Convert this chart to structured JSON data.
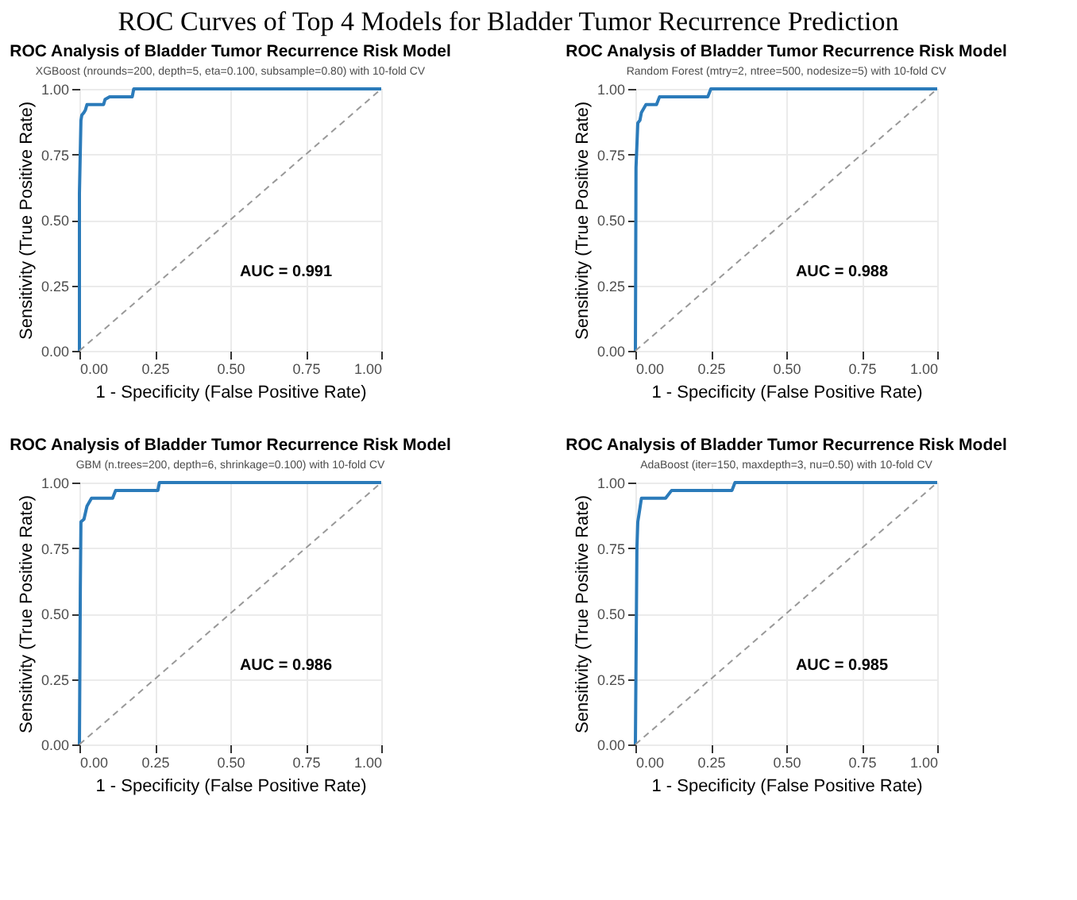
{
  "chart_data": [
    {
      "type": "line",
      "title": "ROC Analysis of Bladder Tumor Recurrence Risk Model",
      "subtitle": "XGBoost (nrounds=200, depth=5, eta=0.100, subsample=0.80) with 10-fold CV",
      "xlabel": "1 - Specificity (False Positive Rate)",
      "ylabel": "Sensitivity (True Positive Rate)",
      "annotations": [
        "ROC Curves of Top 4 Models for Bladder Tumor Recurrence Prediction",
        "AUC = 0.991"
      ],
      "xlim": [
        0,
        1
      ],
      "ylim": [
        0,
        1
      ],
      "xticks": [
        {
          "value": 0,
          "label": "0.00"
        },
        {
          "value": 0.25,
          "label": "0.25"
        },
        {
          "value": 0.5,
          "label": "0.50"
        },
        {
          "value": 0.75,
          "label": "0.75"
        },
        {
          "value": 1,
          "label": "1.00"
        }
      ],
      "yticks": [
        {
          "value": 0,
          "label": "0.00"
        },
        {
          "value": 0.25,
          "label": "0.25"
        },
        {
          "value": 0.5,
          "label": "0.50"
        },
        {
          "value": 0.75,
          "label": "0.75"
        },
        {
          "value": 1,
          "label": "1.00"
        }
      ],
      "grid": true,
      "series": [
        {
          "color": "#2b7bba",
          "line_style": "solid",
          "x": [
            0,
            0,
            0.005,
            0.008,
            0.015,
            0.02,
            0.025,
            0.08,
            0.085,
            0.1,
            0.175,
            0.18,
            1
          ],
          "values": [
            0,
            0.6,
            0.88,
            0.9,
            0.91,
            0.92,
            0.94,
            0.94,
            0.96,
            0.97,
            0.97,
            1,
            1
          ]
        },
        {
          "color": "#999999",
          "line_style": "dashed",
          "x": [
            0,
            1
          ],
          "values": [
            0,
            1
          ]
        }
      ]
    },
    {
      "type": "line",
      "title": "ROC Analysis of Bladder Tumor Recurrence Risk Model",
      "subtitle": "Random Forest (mtry=2, ntree=500, nodesize=5) with 10-fold CV",
      "xlabel": "1 - Specificity (False Positive Rate)",
      "ylabel": "Sensitivity (True Positive Rate)",
      "annotations": [
        "AUC = 0.988"
      ],
      "xlim": [
        0,
        1
      ],
      "ylim": [
        0,
        1
      ],
      "xticks": [
        {
          "value": 0,
          "label": "0.00"
        },
        {
          "value": 0.25,
          "label": "0.25"
        },
        {
          "value": 0.5,
          "label": "0.50"
        },
        {
          "value": 0.75,
          "label": "0.75"
        },
        {
          "value": 1,
          "label": "1.00"
        }
      ],
      "yticks": [
        {
          "value": 0,
          "label": "0.00"
        },
        {
          "value": 0.25,
          "label": "0.25"
        },
        {
          "value": 0.5,
          "label": "0.50"
        },
        {
          "value": 0.75,
          "label": "0.75"
        },
        {
          "value": 1,
          "label": "1.00"
        }
      ],
      "grid": true,
      "series": [
        {
          "color": "#2b7bba",
          "line_style": "solid",
          "x": [
            0,
            0.002,
            0.008,
            0.015,
            0.02,
            0.035,
            0.07,
            0.08,
            0.24,
            0.25,
            1
          ],
          "values": [
            0,
            0.7,
            0.87,
            0.88,
            0.91,
            0.94,
            0.94,
            0.97,
            0.97,
            1,
            1
          ]
        },
        {
          "color": "#999999",
          "line_style": "dashed",
          "x": [
            0,
            1
          ],
          "values": [
            0,
            1
          ]
        }
      ]
    },
    {
      "type": "line",
      "title": "ROC Analysis of Bladder Tumor Recurrence Risk Model",
      "subtitle": "GBM (n.trees=200, depth=6, shrinkage=0.100) with 10-fold CV",
      "xlabel": "1 - Specificity (False Positive Rate)",
      "ylabel": "Sensitivity (True Positive Rate)",
      "annotations": [
        "AUC = 0.986"
      ],
      "xlim": [
        0,
        1
      ],
      "ylim": [
        0,
        1
      ],
      "xticks": [
        {
          "value": 0,
          "label": "0.00"
        },
        {
          "value": 0.25,
          "label": "0.25"
        },
        {
          "value": 0.5,
          "label": "0.50"
        },
        {
          "value": 0.75,
          "label": "0.75"
        },
        {
          "value": 1,
          "label": "1.00"
        }
      ],
      "yticks": [
        {
          "value": 0,
          "label": "0.00"
        },
        {
          "value": 0.25,
          "label": "0.25"
        },
        {
          "value": 0.5,
          "label": "0.50"
        },
        {
          "value": 0.75,
          "label": "0.75"
        },
        {
          "value": 1,
          "label": "1.00"
        }
      ],
      "grid": true,
      "series": [
        {
          "color": "#2b7bba",
          "line_style": "solid",
          "x": [
            0,
            0.003,
            0.005,
            0.015,
            0.025,
            0.04,
            0.11,
            0.12,
            0.26,
            0.265,
            1
          ],
          "values": [
            0,
            0.6,
            0.85,
            0.86,
            0.91,
            0.94,
            0.94,
            0.97,
            0.97,
            1,
            1
          ]
        },
        {
          "color": "#999999",
          "line_style": "dashed",
          "x": [
            0,
            1
          ],
          "values": [
            0,
            1
          ]
        }
      ]
    },
    {
      "type": "line",
      "title": "ROC Analysis of Bladder Tumor Recurrence Risk Model",
      "subtitle": "AdaBoost (iter=150, maxdepth=3, nu=0.50) with 10-fold CV",
      "xlabel": "1 - Specificity (False Positive Rate)",
      "ylabel": "Sensitivity (True Positive Rate)",
      "annotations": [
        "AUC = 0.985"
      ],
      "xlim": [
        0,
        1
      ],
      "ylim": [
        0,
        1
      ],
      "xticks": [
        {
          "value": 0,
          "label": "0.00"
        },
        {
          "value": 0.25,
          "label": "0.25"
        },
        {
          "value": 0.5,
          "label": "0.50"
        },
        {
          "value": 0.75,
          "label": "0.75"
        },
        {
          "value": 1,
          "label": "1.00"
        }
      ],
      "yticks": [
        {
          "value": 0,
          "label": "0.00"
        },
        {
          "value": 0.25,
          "label": "0.25"
        },
        {
          "value": 0.5,
          "label": "0.50"
        },
        {
          "value": 0.75,
          "label": "0.75"
        },
        {
          "value": 1,
          "label": "1.00"
        }
      ],
      "grid": true,
      "series": [
        {
          "color": "#2b7bba",
          "line_style": "solid",
          "x": [
            0,
            0.005,
            0.008,
            0.012,
            0.02,
            0.1,
            0.12,
            0.32,
            0.33,
            1
          ],
          "values": [
            0,
            0.75,
            0.85,
            0.88,
            0.94,
            0.94,
            0.97,
            0.97,
            1,
            1
          ]
        },
        {
          "color": "#999999",
          "line_style": "dashed",
          "x": [
            0,
            1
          ],
          "values": [
            0,
            1
          ]
        }
      ]
    }
  ]
}
